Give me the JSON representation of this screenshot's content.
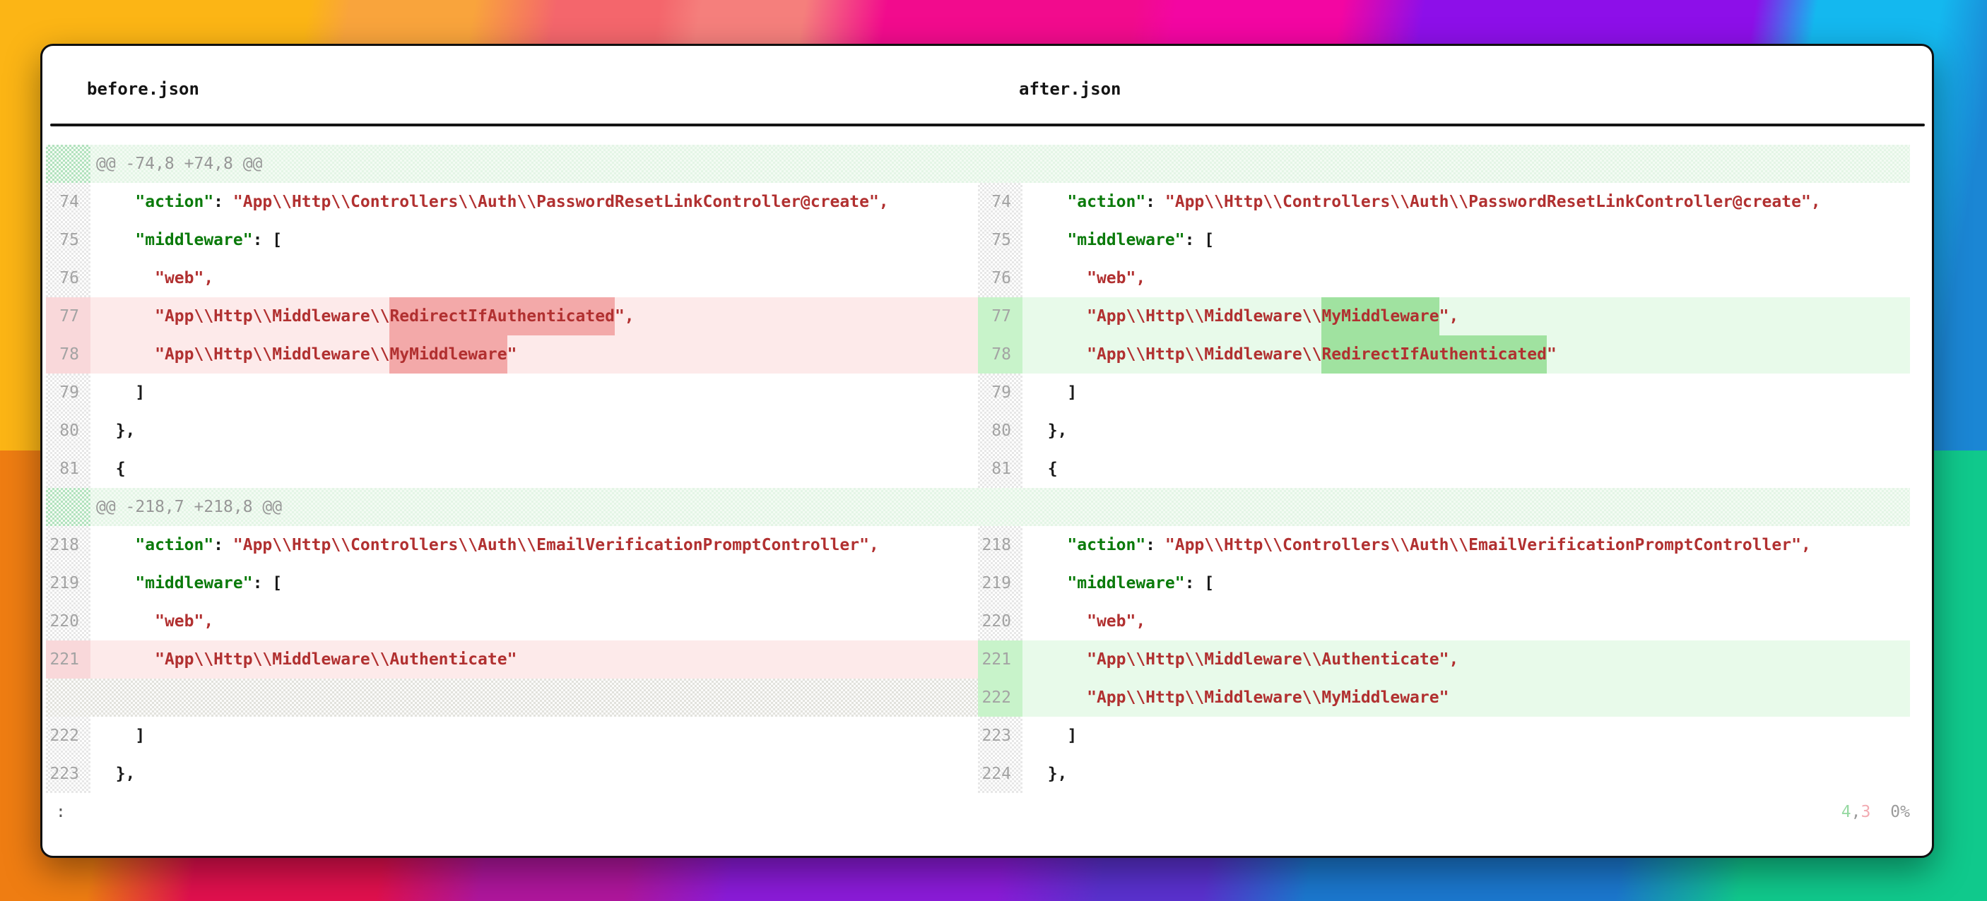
{
  "window": {
    "left_file": "before.json",
    "right_file": "after.json",
    "prompt": ":",
    "status": {
      "added": "4",
      "sep": ",",
      "removed": "3",
      "percent": "0%"
    }
  },
  "colors": {
    "key": "#0a7a0a",
    "string": "#b13030",
    "punct": "#1a1a1a",
    "line_number": "#a3a3a3",
    "hunk_text": "#979797",
    "hunk_bg": "#f3fbf3",
    "del_bg": "#fdeaea",
    "del_emph_bg": "#f3a9a9",
    "del_gutter_bg": "#f9d8da",
    "ins_bg": "#e8faea",
    "ins_emph_bg": "#a0e2a0",
    "ins_gutter_bg": "#c8f3ca",
    "status_add": "#96d9a2",
    "status_del": "#f2abb2",
    "status_gray": "#9b9b9b",
    "rule": "#141414",
    "header_text": "#141414"
  },
  "rows": [
    {
      "kind": "hunk",
      "text": "@@ -74,8 +74,8 @@"
    },
    {
      "kind": "pair",
      "left": {
        "num": "74",
        "state": "ctx",
        "segs": [
          [
            "p",
            "    "
          ],
          [
            "k",
            "\"action\""
          ],
          [
            "p",
            ": "
          ],
          [
            "s",
            "\"App\\\\Http\\\\Controllers\\\\Auth\\\\PasswordResetLinkController@create\","
          ]
        ]
      },
      "right": {
        "num": "74",
        "state": "ctx",
        "segs": [
          [
            "p",
            "    "
          ],
          [
            "k",
            "\"action\""
          ],
          [
            "p",
            ": "
          ],
          [
            "s",
            "\"App\\\\Http\\\\Controllers\\\\Auth\\\\PasswordResetLinkController@create\","
          ]
        ]
      }
    },
    {
      "kind": "pair",
      "left": {
        "num": "75",
        "state": "ctx",
        "segs": [
          [
            "p",
            "    "
          ],
          [
            "k",
            "\"middleware\""
          ],
          [
            "p",
            ": ["
          ]
        ]
      },
      "right": {
        "num": "75",
        "state": "ctx",
        "segs": [
          [
            "p",
            "    "
          ],
          [
            "k",
            "\"middleware\""
          ],
          [
            "p",
            ": ["
          ]
        ]
      }
    },
    {
      "kind": "pair",
      "left": {
        "num": "76",
        "state": "ctx",
        "segs": [
          [
            "p",
            "      "
          ],
          [
            "s",
            "\"web\","
          ]
        ]
      },
      "right": {
        "num": "76",
        "state": "ctx",
        "segs": [
          [
            "p",
            "      "
          ],
          [
            "s",
            "\"web\","
          ]
        ]
      }
    },
    {
      "kind": "pair",
      "left": {
        "num": "77",
        "state": "del",
        "segs": [
          [
            "p",
            "      "
          ],
          [
            "s",
            "\"App\\\\Http\\\\Middleware\\\\"
          ],
          [
            "e",
            "RedirectIfAuthenticated"
          ],
          [
            "s",
            "\","
          ]
        ]
      },
      "right": {
        "num": "77",
        "state": "ins",
        "segs": [
          [
            "p",
            "      "
          ],
          [
            "s",
            "\"App\\\\Http\\\\Middleware\\\\"
          ],
          [
            "e",
            "MyMiddleware"
          ],
          [
            "s",
            "\","
          ]
        ]
      }
    },
    {
      "kind": "pair",
      "left": {
        "num": "78",
        "state": "del",
        "segs": [
          [
            "p",
            "      "
          ],
          [
            "s",
            "\"App\\\\Http\\\\Middleware\\\\"
          ],
          [
            "e",
            "MyMiddleware"
          ],
          [
            "s",
            "\""
          ]
        ]
      },
      "right": {
        "num": "78",
        "state": "ins",
        "segs": [
          [
            "p",
            "      "
          ],
          [
            "s",
            "\"App\\\\Http\\\\Middleware\\\\"
          ],
          [
            "e",
            "RedirectIfAuthenticated"
          ],
          [
            "s",
            "\""
          ]
        ]
      }
    },
    {
      "kind": "pair",
      "left": {
        "num": "79",
        "state": "ctx",
        "segs": [
          [
            "p",
            "    ]"
          ]
        ]
      },
      "right": {
        "num": "79",
        "state": "ctx",
        "segs": [
          [
            "p",
            "    ]"
          ]
        ]
      }
    },
    {
      "kind": "pair",
      "left": {
        "num": "80",
        "state": "ctx",
        "segs": [
          [
            "p",
            "  },"
          ]
        ]
      },
      "right": {
        "num": "80",
        "state": "ctx",
        "segs": [
          [
            "p",
            "  },"
          ]
        ]
      }
    },
    {
      "kind": "pair",
      "left": {
        "num": "81",
        "state": "ctx",
        "segs": [
          [
            "p",
            "  {"
          ]
        ]
      },
      "right": {
        "num": "81",
        "state": "ctx",
        "segs": [
          [
            "p",
            "  {"
          ]
        ]
      }
    },
    {
      "kind": "hunk",
      "text": "@@ -218,7 +218,8 @@"
    },
    {
      "kind": "pair",
      "left": {
        "num": "218",
        "state": "ctx",
        "segs": [
          [
            "p",
            "    "
          ],
          [
            "k",
            "\"action\""
          ],
          [
            "p",
            ": "
          ],
          [
            "s",
            "\"App\\\\Http\\\\Controllers\\\\Auth\\\\EmailVerificationPromptController\","
          ]
        ]
      },
      "right": {
        "num": "218",
        "state": "ctx",
        "segs": [
          [
            "p",
            "    "
          ],
          [
            "k",
            "\"action\""
          ],
          [
            "p",
            ": "
          ],
          [
            "s",
            "\"App\\\\Http\\\\Controllers\\\\Auth\\\\EmailVerificationPromptController\","
          ]
        ]
      }
    },
    {
      "kind": "pair",
      "left": {
        "num": "219",
        "state": "ctx",
        "segs": [
          [
            "p",
            "    "
          ],
          [
            "k",
            "\"middleware\""
          ],
          [
            "p",
            ": ["
          ]
        ]
      },
      "right": {
        "num": "219",
        "state": "ctx",
        "segs": [
          [
            "p",
            "    "
          ],
          [
            "k",
            "\"middleware\""
          ],
          [
            "p",
            ": ["
          ]
        ]
      }
    },
    {
      "kind": "pair",
      "left": {
        "num": "220",
        "state": "ctx",
        "segs": [
          [
            "p",
            "      "
          ],
          [
            "s",
            "\"web\","
          ]
        ]
      },
      "right": {
        "num": "220",
        "state": "ctx",
        "segs": [
          [
            "p",
            "      "
          ],
          [
            "s",
            "\"web\","
          ]
        ]
      }
    },
    {
      "kind": "pair",
      "left": {
        "num": "221",
        "state": "del",
        "segs": [
          [
            "p",
            "      "
          ],
          [
            "s",
            "\"App\\\\Http\\\\Middleware\\\\Authenticate\""
          ]
        ]
      },
      "right": {
        "num": "221",
        "state": "ins",
        "segs": [
          [
            "p",
            "      "
          ],
          [
            "s",
            "\"App\\\\Http\\\\Middleware\\\\Authenticate\","
          ]
        ]
      }
    },
    {
      "kind": "pair",
      "left": {
        "state": "filler"
      },
      "right": {
        "num": "222",
        "state": "ins",
        "segs": [
          [
            "p",
            "      "
          ],
          [
            "s",
            "\"App\\\\Http\\\\Middleware\\\\MyMiddleware\""
          ]
        ]
      }
    },
    {
      "kind": "pair",
      "left": {
        "num": "222",
        "state": "ctx",
        "segs": [
          [
            "p",
            "    ]"
          ]
        ]
      },
      "right": {
        "num": "223",
        "state": "ctx",
        "segs": [
          [
            "p",
            "    ]"
          ]
        ]
      }
    },
    {
      "kind": "pair",
      "left": {
        "num": "223",
        "state": "ctx",
        "segs": [
          [
            "p",
            "  },"
          ]
        ]
      },
      "right": {
        "num": "224",
        "state": "ctx",
        "segs": [
          [
            "p",
            "  },"
          ]
        ]
      }
    }
  ]
}
